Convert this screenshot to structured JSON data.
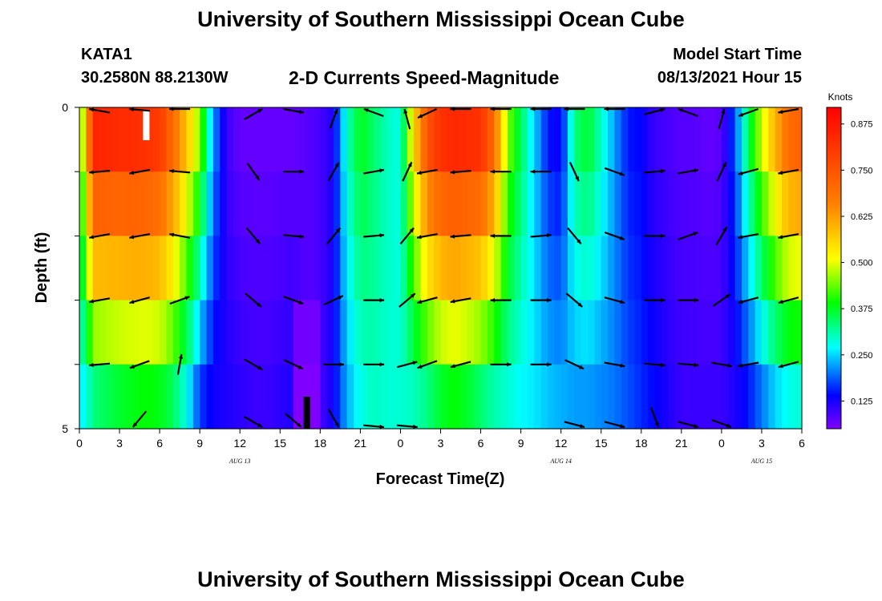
{
  "header": {
    "title": "University of Southern Mississippi Ocean Cube",
    "station": "KATA1",
    "coordinates": "30.2580N  88.2130W",
    "subtitle": "2-D Currents Speed-Magnitude",
    "model_start_label": "Model Start Time",
    "model_start_value": "08/13/2021 Hour 15"
  },
  "footer": {
    "title": "University of Southern Mississippi Ocean Cube"
  },
  "chart_data": {
    "type": "heatmap",
    "title": "2-D Currents Speed-Magnitude",
    "xlabel": "Forecast Time(Z)",
    "ylabel": "Depth (ft)",
    "x_tick_labels": [
      "0",
      "3",
      "6",
      "9",
      "12",
      "15",
      "18",
      "21",
      "0",
      "3",
      "6",
      "9",
      "12",
      "15",
      "18",
      "21",
      "0",
      "3",
      "6"
    ],
    "x_range_hours": [
      0,
      54
    ],
    "date_labels": [
      {
        "text": "AUG 13",
        "hour": 12
      },
      {
        "text": "AUG 14",
        "hour": 36
      },
      {
        "text": "AUG 15",
        "hour": 51
      }
    ],
    "y_range": [
      0,
      5
    ],
    "y_tick_labels": [
      "0",
      "5"
    ],
    "y_rows": 5,
    "colorbar": {
      "label": "Knots",
      "min": 0.05,
      "max": 0.92,
      "ticks": [
        "0.125",
        "0.250",
        "0.375",
        "0.500",
        "0.625",
        "0.750",
        "0.875"
      ],
      "tick_values": [
        0.125,
        0.25,
        0.375,
        0.5,
        0.625,
        0.75,
        0.875
      ],
      "stops": [
        {
          "value": 0.05,
          "color": "#8000ff"
        },
        {
          "value": 0.14,
          "color": "#0000ff"
        },
        {
          "value": 0.27,
          "color": "#00ffff"
        },
        {
          "value": 0.39,
          "color": "#00ff00"
        },
        {
          "value": 0.51,
          "color": "#ffff00"
        },
        {
          "value": 0.66,
          "color": "#ff8000"
        },
        {
          "value": 0.92,
          "color": "#ff0000"
        }
      ]
    },
    "speed_anchors": {
      "hours": [
        0,
        0.5,
        1,
        2,
        3,
        4,
        5,
        6,
        7,
        8,
        9,
        10,
        11,
        12,
        13,
        14,
        15,
        16,
        17,
        18,
        19,
        20,
        21,
        22,
        23,
        24,
        25,
        26,
        27,
        28,
        29,
        30,
        31,
        32,
        33,
        34,
        35,
        36,
        37,
        38,
        39,
        40,
        41,
        42,
        43,
        44,
        45,
        46,
        47,
        48,
        49,
        50,
        51,
        52,
        53,
        54
      ],
      "surface": [
        0.42,
        0.55,
        0.85,
        0.84,
        0.83,
        0.83,
        0.82,
        0.8,
        0.7,
        0.58,
        0.45,
        0.22,
        0.1,
        0.07,
        0.07,
        0.07,
        0.07,
        0.07,
        0.08,
        0.09,
        0.12,
        0.3,
        0.38,
        0.34,
        0.3,
        0.28,
        0.55,
        0.75,
        0.82,
        0.84,
        0.83,
        0.82,
        0.7,
        0.45,
        0.35,
        0.25,
        0.15,
        0.13,
        0.33,
        0.37,
        0.3,
        0.22,
        0.15,
        0.14,
        0.1,
        0.09,
        0.08,
        0.08,
        0.07,
        0.08,
        0.18,
        0.35,
        0.48,
        0.6,
        0.7,
        0.72
      ],
      "bottom": [
        0.26,
        0.28,
        0.33,
        0.35,
        0.37,
        0.38,
        0.39,
        0.38,
        0.35,
        0.28,
        0.17,
        0.13,
        0.12,
        0.11,
        0.1,
        0.1,
        0.11,
        0.12,
        0.08,
        0.09,
        0.13,
        0.23,
        0.28,
        0.3,
        0.29,
        0.29,
        0.3,
        0.33,
        0.37,
        0.39,
        0.37,
        0.34,
        0.31,
        0.29,
        0.27,
        0.26,
        0.24,
        0.23,
        0.22,
        0.22,
        0.21,
        0.2,
        0.18,
        0.16,
        0.14,
        0.12,
        0.1,
        0.1,
        0.1,
        0.1,
        0.12,
        0.15,
        0.2,
        0.25,
        0.28,
        0.29
      ]
    },
    "speed_anomalies": [
      {
        "row": 5,
        "hour_from": 16,
        "hour_to": 18,
        "value": 0.05
      },
      {
        "row": 4,
        "hour_from": 16,
        "hour_to": 18,
        "value": 0.06
      }
    ],
    "vectors": {
      "hours": [
        1.5,
        4.5,
        7.5,
        13,
        16,
        19,
        22,
        24.5,
        26,
        28.5,
        31.5,
        34.5,
        37,
        40,
        43,
        45.5,
        48,
        50,
        53
      ],
      "rows": [
        [
          170,
          175,
          180,
          30,
          350,
          70,
          160,
          105,
          205,
          180,
          180,
          180,
          180,
          180,
          15,
          160,
          75,
          200,
          190
        ],
        [
          185,
          190,
          175,
          305,
          0,
          60,
          10,
          65,
          190,
          185,
          180,
          180,
          295,
          340,
          5,
          10,
          65,
          195,
          190
        ],
        [
          190,
          190,
          170,
          310,
          355,
          50,
          5,
          50,
          190,
          185,
          180,
          5,
          310,
          340,
          0,
          20,
          60,
          190,
          190
        ],
        [
          190,
          195,
          20,
          320,
          340,
          25,
          0,
          40,
          195,
          190,
          180,
          0,
          320,
          345,
          0,
          0,
          35,
          195,
          195
        ],
        [
          185,
          200,
          80,
          330,
          335,
          0,
          0,
          15,
          200,
          195,
          0,
          0,
          335,
          350,
          355,
          355,
          350,
          190,
          195
        ],
        [
          null,
          230,
          null,
          330,
          320,
          300,
          355,
          355,
          null,
          null,
          null,
          null,
          345,
          345,
          290,
          345,
          340,
          null,
          null
        ]
      ]
    },
    "data_gaps": [
      {
        "row": 1,
        "hour": 5
      },
      {
        "row": 6,
        "hour": 17
      }
    ]
  }
}
